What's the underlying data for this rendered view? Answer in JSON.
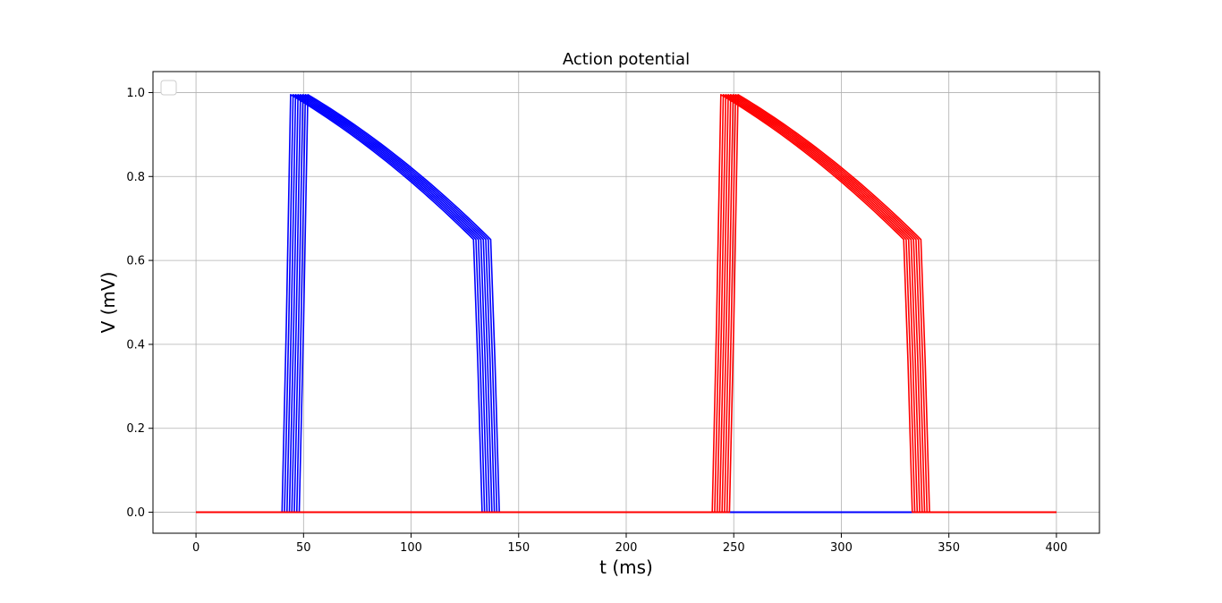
{
  "chart_data": {
    "type": "line",
    "title": "Action potential",
    "xlabel": "t (ms)",
    "ylabel": "V (mV)",
    "xlim": [
      -20,
      420
    ],
    "ylim": [
      -0.05,
      1.05
    ],
    "xticks": [
      0,
      50,
      100,
      150,
      200,
      250,
      300,
      350,
      400
    ],
    "yticks": [
      0.0,
      0.2,
      0.4,
      0.6,
      0.8,
      1.0
    ],
    "xtick_labels": [
      "0",
      "50",
      "100",
      "150",
      "200",
      "250",
      "300",
      "350",
      "400"
    ],
    "ytick_labels": [
      "0.0",
      "0.2",
      "0.4",
      "0.6",
      "0.8",
      "1.0"
    ],
    "grid": true,
    "legend": {
      "placement": "upper-left",
      "entries": []
    },
    "series": [
      {
        "color": "#0000ff",
        "traces": 8,
        "onset_range": [
          40,
          48
        ],
        "upstroke_ms": 4,
        "peak": 0.995,
        "plateau_end": 0.65,
        "plateau_duration_ms": 85,
        "repolarization_ms": 4,
        "resting": 0.0,
        "x_range": [
          0,
          400
        ]
      },
      {
        "color": "#ff0000",
        "traces": 8,
        "onset_range": [
          240,
          248
        ],
        "upstroke_ms": 4,
        "peak": 0.995,
        "plateau_end": 0.65,
        "plateau_duration_ms": 85,
        "repolarization_ms": 4,
        "resting": 0.0,
        "x_range": [
          0,
          400
        ]
      }
    ]
  }
}
